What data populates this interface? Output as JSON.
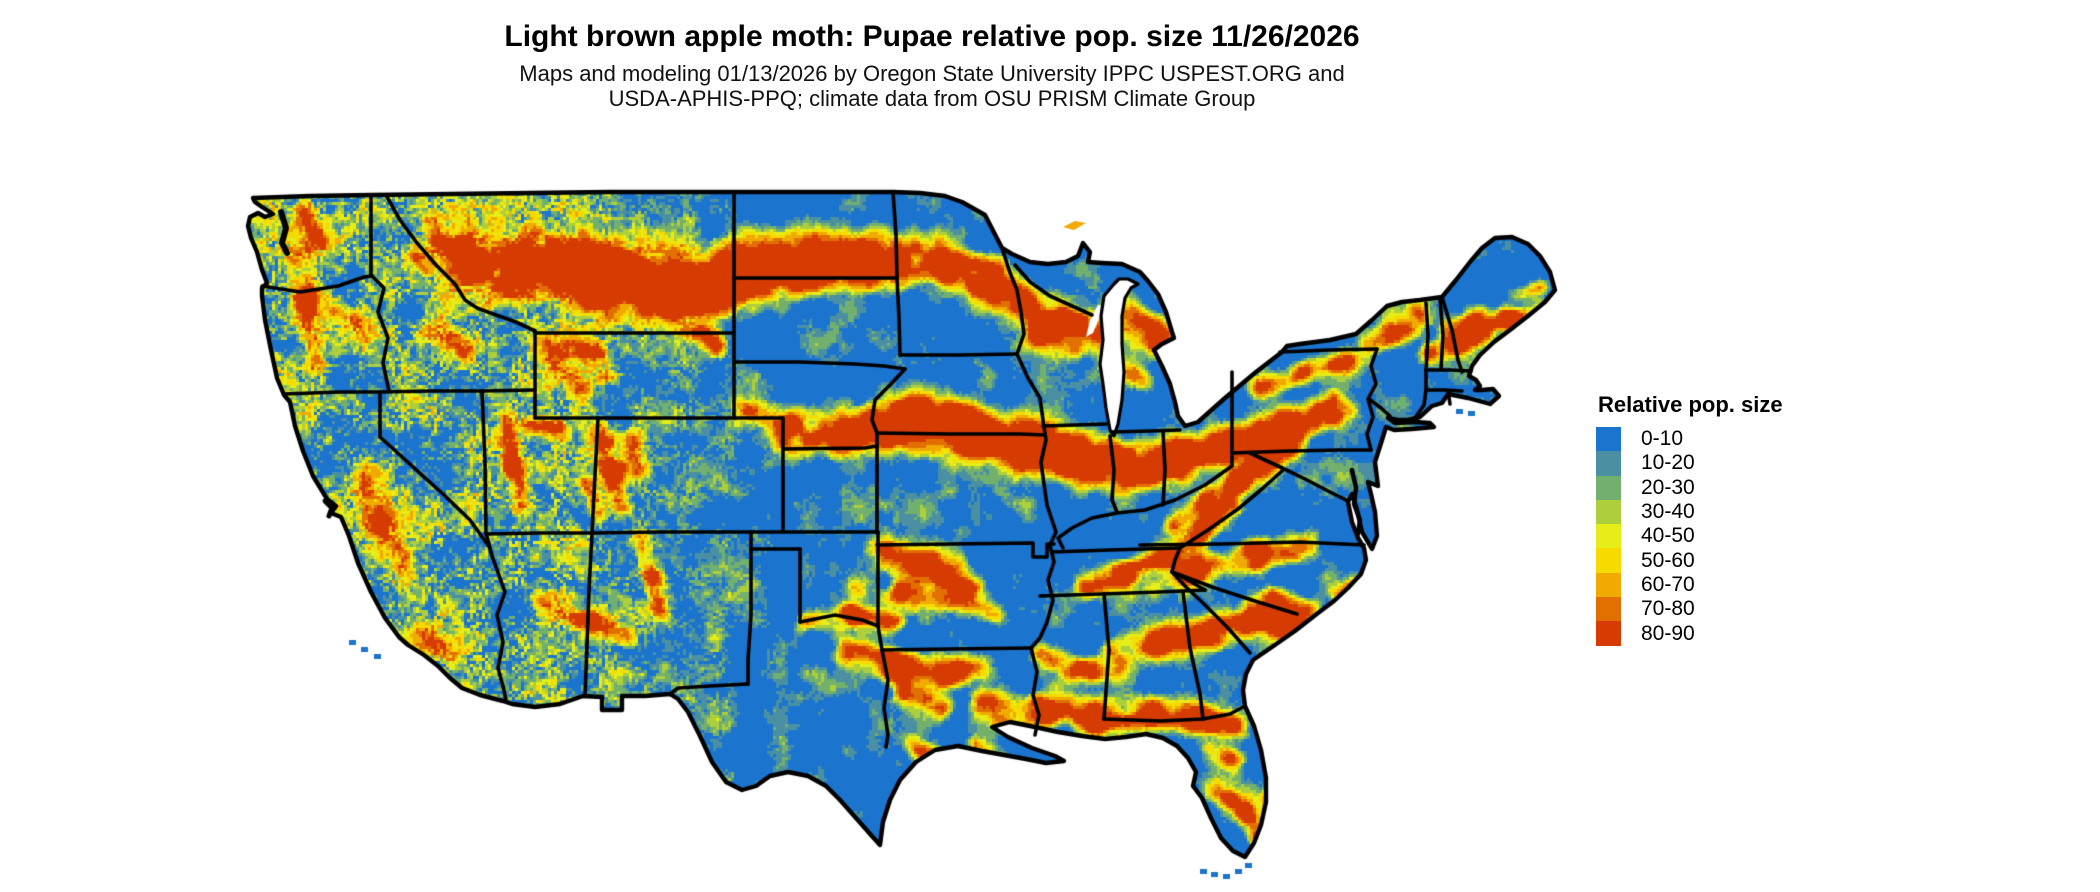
{
  "title": "Light brown apple moth: Pupae relative pop. size 11/26/2026",
  "subtitle_line1": "Maps and modeling 01/13/2026 by Oregon State University IPPC USPEST.ORG and",
  "subtitle_line2": "USDA-APHIS-PPQ; climate data from OSU PRISM Climate Group",
  "legend": {
    "title": "Relative pop. size",
    "items": [
      {
        "label": "0-10",
        "color": "#1b74ce"
      },
      {
        "label": "10-20",
        "color": "#4a90a2"
      },
      {
        "label": "20-30",
        "color": "#72b06e"
      },
      {
        "label": "30-40",
        "color": "#aecf3c"
      },
      {
        "label": "40-50",
        "color": "#e6ed18"
      },
      {
        "label": "50-60",
        "color": "#f7da00"
      },
      {
        "label": "60-70",
        "color": "#f0aa01"
      },
      {
        "label": "70-80",
        "color": "#e27000"
      },
      {
        "label": "80-90",
        "color": "#d63c01"
      }
    ]
  },
  "map": {
    "region": "Conterminous United States",
    "base_color": "#1b74ce",
    "border_color": "#000000",
    "background_color": "#ffffff"
  }
}
